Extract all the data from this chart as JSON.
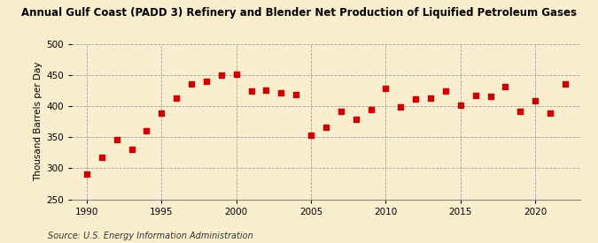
{
  "title": "Annual Gulf Coast (PADD 3) Refinery and Blender Net Production of Liquified Petroleum Gases",
  "ylabel": "Thousand Barrels per Day",
  "source": "Source: U.S. Energy Information Administration",
  "background_color": "#faeecf",
  "plot_background_color": "#faeecf",
  "marker_color": "#cc0000",
  "xlim": [
    1989,
    2023
  ],
  "ylim": [
    250,
    500
  ],
  "yticks": [
    250,
    300,
    350,
    400,
    450,
    500
  ],
  "xticks": [
    1990,
    1995,
    2000,
    2005,
    2010,
    2015,
    2020
  ],
  "years": [
    1990,
    1991,
    1992,
    1993,
    1994,
    1995,
    1996,
    1997,
    1998,
    1999,
    2000,
    2001,
    2002,
    2003,
    2004,
    2005,
    2006,
    2007,
    2008,
    2009,
    2010,
    2011,
    2012,
    2013,
    2014,
    2015,
    2016,
    2017,
    2018,
    2019,
    2020,
    2021,
    2022
  ],
  "values": [
    291,
    317,
    346,
    330,
    360,
    388,
    413,
    435,
    440,
    449,
    451,
    424,
    425,
    421,
    418,
    353,
    366,
    391,
    379,
    394,
    428,
    399,
    411,
    412,
    424,
    401,
    417,
    415,
    431,
    392,
    409,
    389,
    435
  ]
}
